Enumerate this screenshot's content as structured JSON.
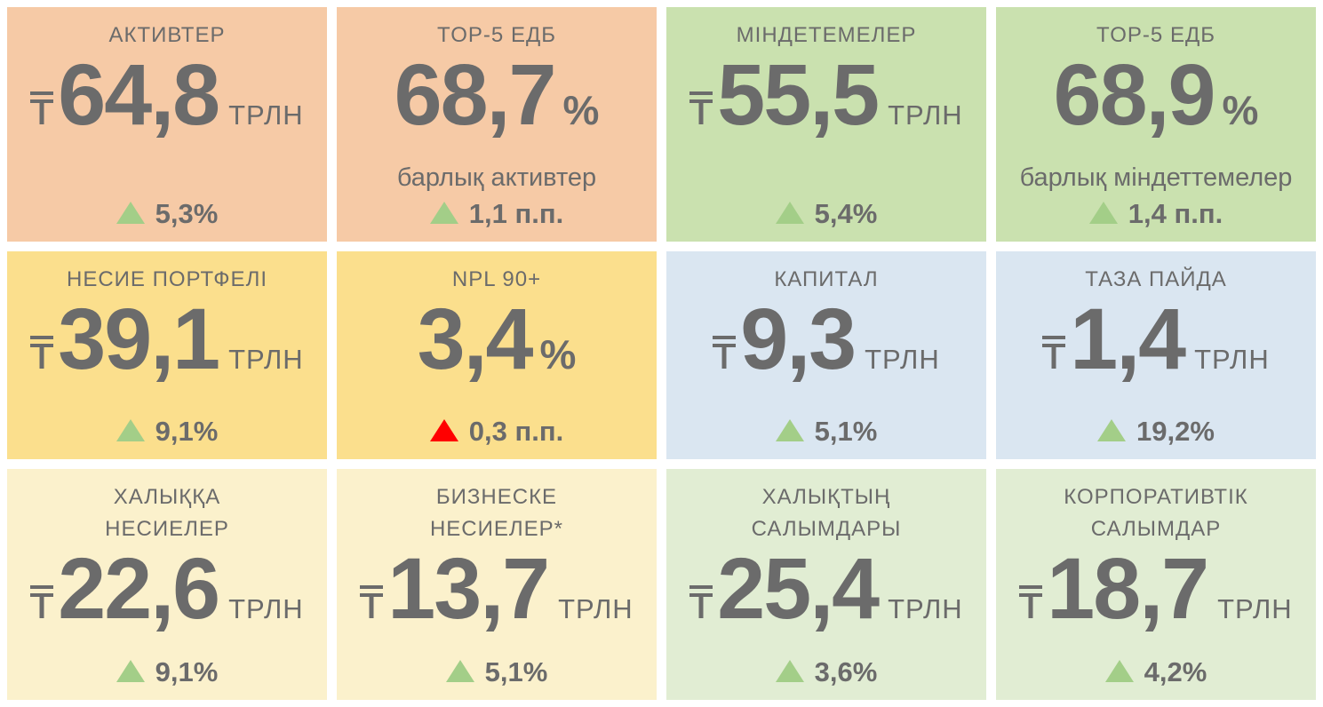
{
  "colors": {
    "page_bg": "#FFFFFF",
    "text": "#6B6B6B",
    "positive": "#A3CE88",
    "negative": "#FF0000",
    "salmon": "#F6CAA6",
    "green": "#CAE1AF",
    "yellow": "#FBDF8D",
    "blue": "#DAE6F1",
    "cream": "#FBF1CC",
    "lightgreen": "#E1EDD3"
  },
  "icons": {
    "currency": "tenge-sign",
    "delta": "triangle-up"
  },
  "cards": [
    {
      "id": "assets",
      "bg": "salmon",
      "title": "АКТИВТЕР",
      "kind": "money",
      "value": "64,8",
      "unit": "ТРЛН",
      "delta": {
        "trend": "up",
        "sentiment": "positive",
        "text": "5,3%"
      }
    },
    {
      "id": "top5-assets",
      "bg": "salmon",
      "title": "TOP-5 ЕДБ",
      "kind": "percent",
      "value": "68,7",
      "unit": "%",
      "subtitle": "барлық активтер",
      "delta": {
        "trend": "up",
        "sentiment": "positive",
        "text": "1,1 п.п."
      }
    },
    {
      "id": "liabilities",
      "bg": "green",
      "title": "МІНДЕТЕМЕЛЕР",
      "kind": "money",
      "value": "55,5",
      "unit": "ТРЛН",
      "delta": {
        "trend": "up",
        "sentiment": "positive",
        "text": "5,4%"
      }
    },
    {
      "id": "top5-liabilities",
      "bg": "green",
      "title": "TOP-5 ЕДБ",
      "kind": "percent",
      "value": "68,9",
      "unit": "%",
      "subtitle": "барлық міндеттемелер",
      "delta": {
        "trend": "up",
        "sentiment": "positive",
        "text": "1,4 п.п."
      }
    },
    {
      "id": "loan-portfolio",
      "bg": "yellow",
      "title": "НЕСИЕ ПОРТФЕЛІ",
      "kind": "money",
      "value": "39,1",
      "unit": "ТРЛН",
      "delta": {
        "trend": "up",
        "sentiment": "positive",
        "text": "9,1%"
      }
    },
    {
      "id": "npl-90",
      "bg": "yellow",
      "title": "NPL 90+",
      "kind": "percent",
      "value": "3,4",
      "unit": "%",
      "delta": {
        "trend": "up",
        "sentiment": "negative",
        "text": "0,3 п.п."
      }
    },
    {
      "id": "capital",
      "bg": "blue",
      "title": "КАПИТАЛ",
      "kind": "money",
      "value": "9,3",
      "unit": "ТРЛН",
      "delta": {
        "trend": "up",
        "sentiment": "positive",
        "text": "5,1%"
      }
    },
    {
      "id": "net-profit",
      "bg": "blue",
      "title": "ТАЗА ПАЙДА",
      "kind": "money",
      "value": "1,4",
      "unit": "ТРЛН",
      "delta": {
        "trend": "up",
        "sentiment": "positive",
        "text": "19,2%"
      }
    },
    {
      "id": "retail-loans",
      "bg": "cream",
      "title": "ХАЛЫҚҚА\nНЕСИЕЛЕР",
      "kind": "money",
      "value": "22,6",
      "unit": "ТРЛН",
      "delta": {
        "trend": "up",
        "sentiment": "positive",
        "text": "9,1%"
      }
    },
    {
      "id": "business-loans",
      "bg": "cream",
      "title": "БИЗНЕСКЕ\nНЕСИЕЛЕР*",
      "kind": "money",
      "value": "13,7",
      "unit": "ТРЛН",
      "delta": {
        "trend": "up",
        "sentiment": "positive",
        "text": "5,1%"
      }
    },
    {
      "id": "retail-deposits",
      "bg": "lightgreen",
      "title": "ХАЛЫҚТЫҢ\nСАЛЫМДАРЫ",
      "kind": "money",
      "value": "25,4",
      "unit": "ТРЛН",
      "delta": {
        "trend": "up",
        "sentiment": "positive",
        "text": "3,6%"
      }
    },
    {
      "id": "corporate-deposits",
      "bg": "lightgreen",
      "title": "КОРПОРАТИВТІК\nСАЛЫМДАР",
      "kind": "money",
      "value": "18,7",
      "unit": "ТРЛН",
      "delta": {
        "trend": "up",
        "sentiment": "positive",
        "text": "4,2%"
      }
    }
  ],
  "chart_data": {
    "type": "table",
    "columns": [
      "indicator",
      "value",
      "unit",
      "change",
      "change_direction_color"
    ],
    "rows": [
      [
        "АКТИВТЕР",
        64.8,
        "₸ трлн",
        "+5,3%",
        "green"
      ],
      [
        "TOP-5 ЕДБ (барлық активтер)",
        68.7,
        "%",
        "+1,1 п.п.",
        "green"
      ],
      [
        "МІНДЕТЕМЕЛЕР",
        55.5,
        "₸ трлн",
        "+5,4%",
        "green"
      ],
      [
        "TOP-5 ЕДБ (барлық міндеттемелер)",
        68.9,
        "%",
        "+1,4 п.п.",
        "green"
      ],
      [
        "НЕСИЕ ПОРТФЕЛІ",
        39.1,
        "₸ трлн",
        "+9,1%",
        "green"
      ],
      [
        "NPL 90+",
        3.4,
        "%",
        "+0,3 п.п.",
        "red"
      ],
      [
        "КАПИТАЛ",
        9.3,
        "₸ трлн",
        "+5,1%",
        "green"
      ],
      [
        "ТАЗА ПАЙДА",
        1.4,
        "₸ трлн",
        "+19,2%",
        "green"
      ],
      [
        "ХАЛЫҚҚА НЕСИЕЛЕР",
        22.6,
        "₸ трлн",
        "+9,1%",
        "green"
      ],
      [
        "БИЗНЕСКЕ НЕСИЕЛЕР*",
        13.7,
        "₸ трлн",
        "+5,1%",
        "green"
      ],
      [
        "ХАЛЫҚТЫҢ САЛЫМДАРЫ",
        25.4,
        "₸ трлн",
        "+3,6%",
        "green"
      ],
      [
        "КОРПОРАТИВТІК САЛЫМДАР",
        18.7,
        "₸ трлн",
        "+4,2%",
        "green"
      ]
    ],
    "legend_position": "none",
    "grid": false
  }
}
